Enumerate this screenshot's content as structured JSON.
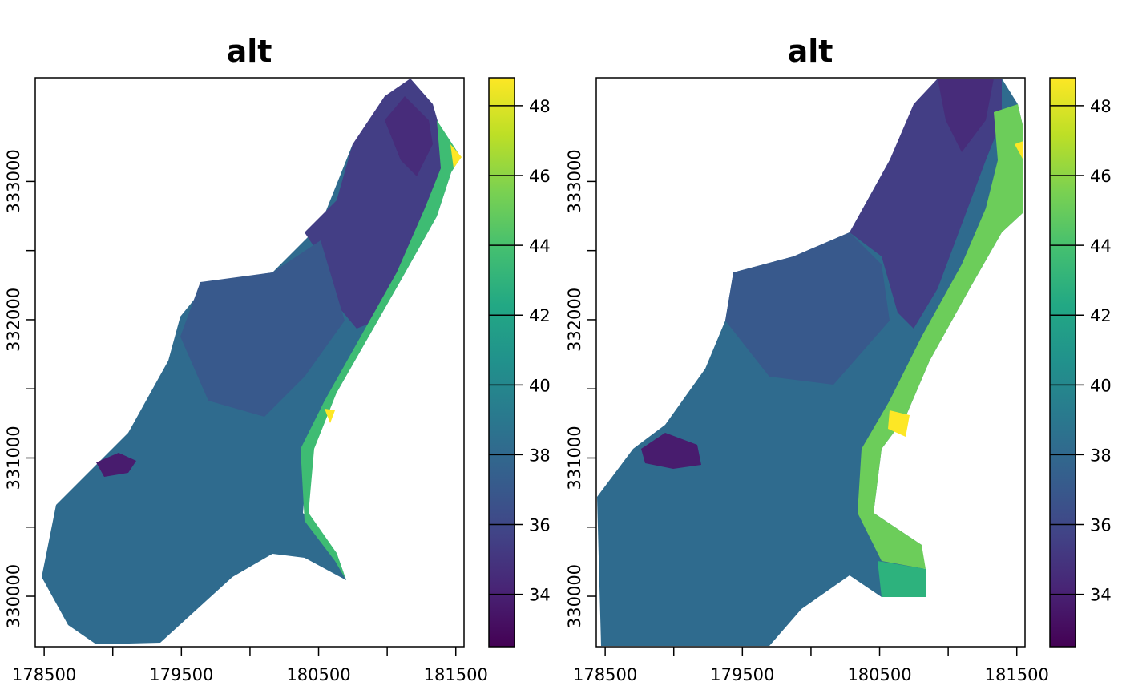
{
  "chart_data": [
    {
      "type": "heatmap",
      "title": "alt",
      "x_ticks": [
        178500,
        179000,
        179500,
        180000,
        180500,
        181000,
        181500
      ],
      "x_tick_labels": [
        "178500",
        "",
        "179500",
        "",
        "180500",
        "",
        "181500"
      ],
      "y_ticks": [
        330000,
        330500,
        331000,
        331500,
        332000,
        332500,
        333000
      ],
      "y_tick_labels": [
        "330000",
        "",
        "331000",
        "",
        "332000",
        "",
        "333000"
      ],
      "xlim": [
        178435,
        181560
      ],
      "ylim": [
        329635,
        333750
      ],
      "legend": {
        "position": "right",
        "palette": "viridis",
        "range": [
          32.5,
          48.8
        ],
        "ticks": [
          34,
          36,
          38,
          40,
          42,
          44,
          46,
          48
        ],
        "tick_labels": [
          "34",
          "36",
          "38",
          "40",
          "42",
          "44",
          "46",
          "48"
        ]
      },
      "colors": {
        "low": "#440154",
        "high": "#fde725"
      }
    },
    {
      "type": "heatmap",
      "title": "alt",
      "x_ticks": [
        178500,
        179000,
        179500,
        180000,
        180500,
        181000,
        181500
      ],
      "x_tick_labels": [
        "178500",
        "",
        "179500",
        "",
        "180500",
        "",
        "181500"
      ],
      "y_ticks": [
        330000,
        330500,
        331000,
        331500,
        332000,
        332500,
        333000
      ],
      "y_tick_labels": [
        "330000",
        "",
        "331000",
        "",
        "332000",
        "",
        "333000"
      ],
      "xlim": [
        178435,
        181560
      ],
      "ylim": [
        329635,
        333750
      ],
      "legend": {
        "position": "right",
        "palette": "viridis",
        "range": [
          32.5,
          48.8
        ],
        "ticks": [
          34,
          36,
          38,
          40,
          42,
          44,
          46,
          48
        ],
        "tick_labels": [
          "34",
          "36",
          "38",
          "40",
          "42",
          "44",
          "46",
          "48"
        ]
      },
      "colors": {
        "low": "#440154",
        "high": "#fde725"
      }
    }
  ]
}
